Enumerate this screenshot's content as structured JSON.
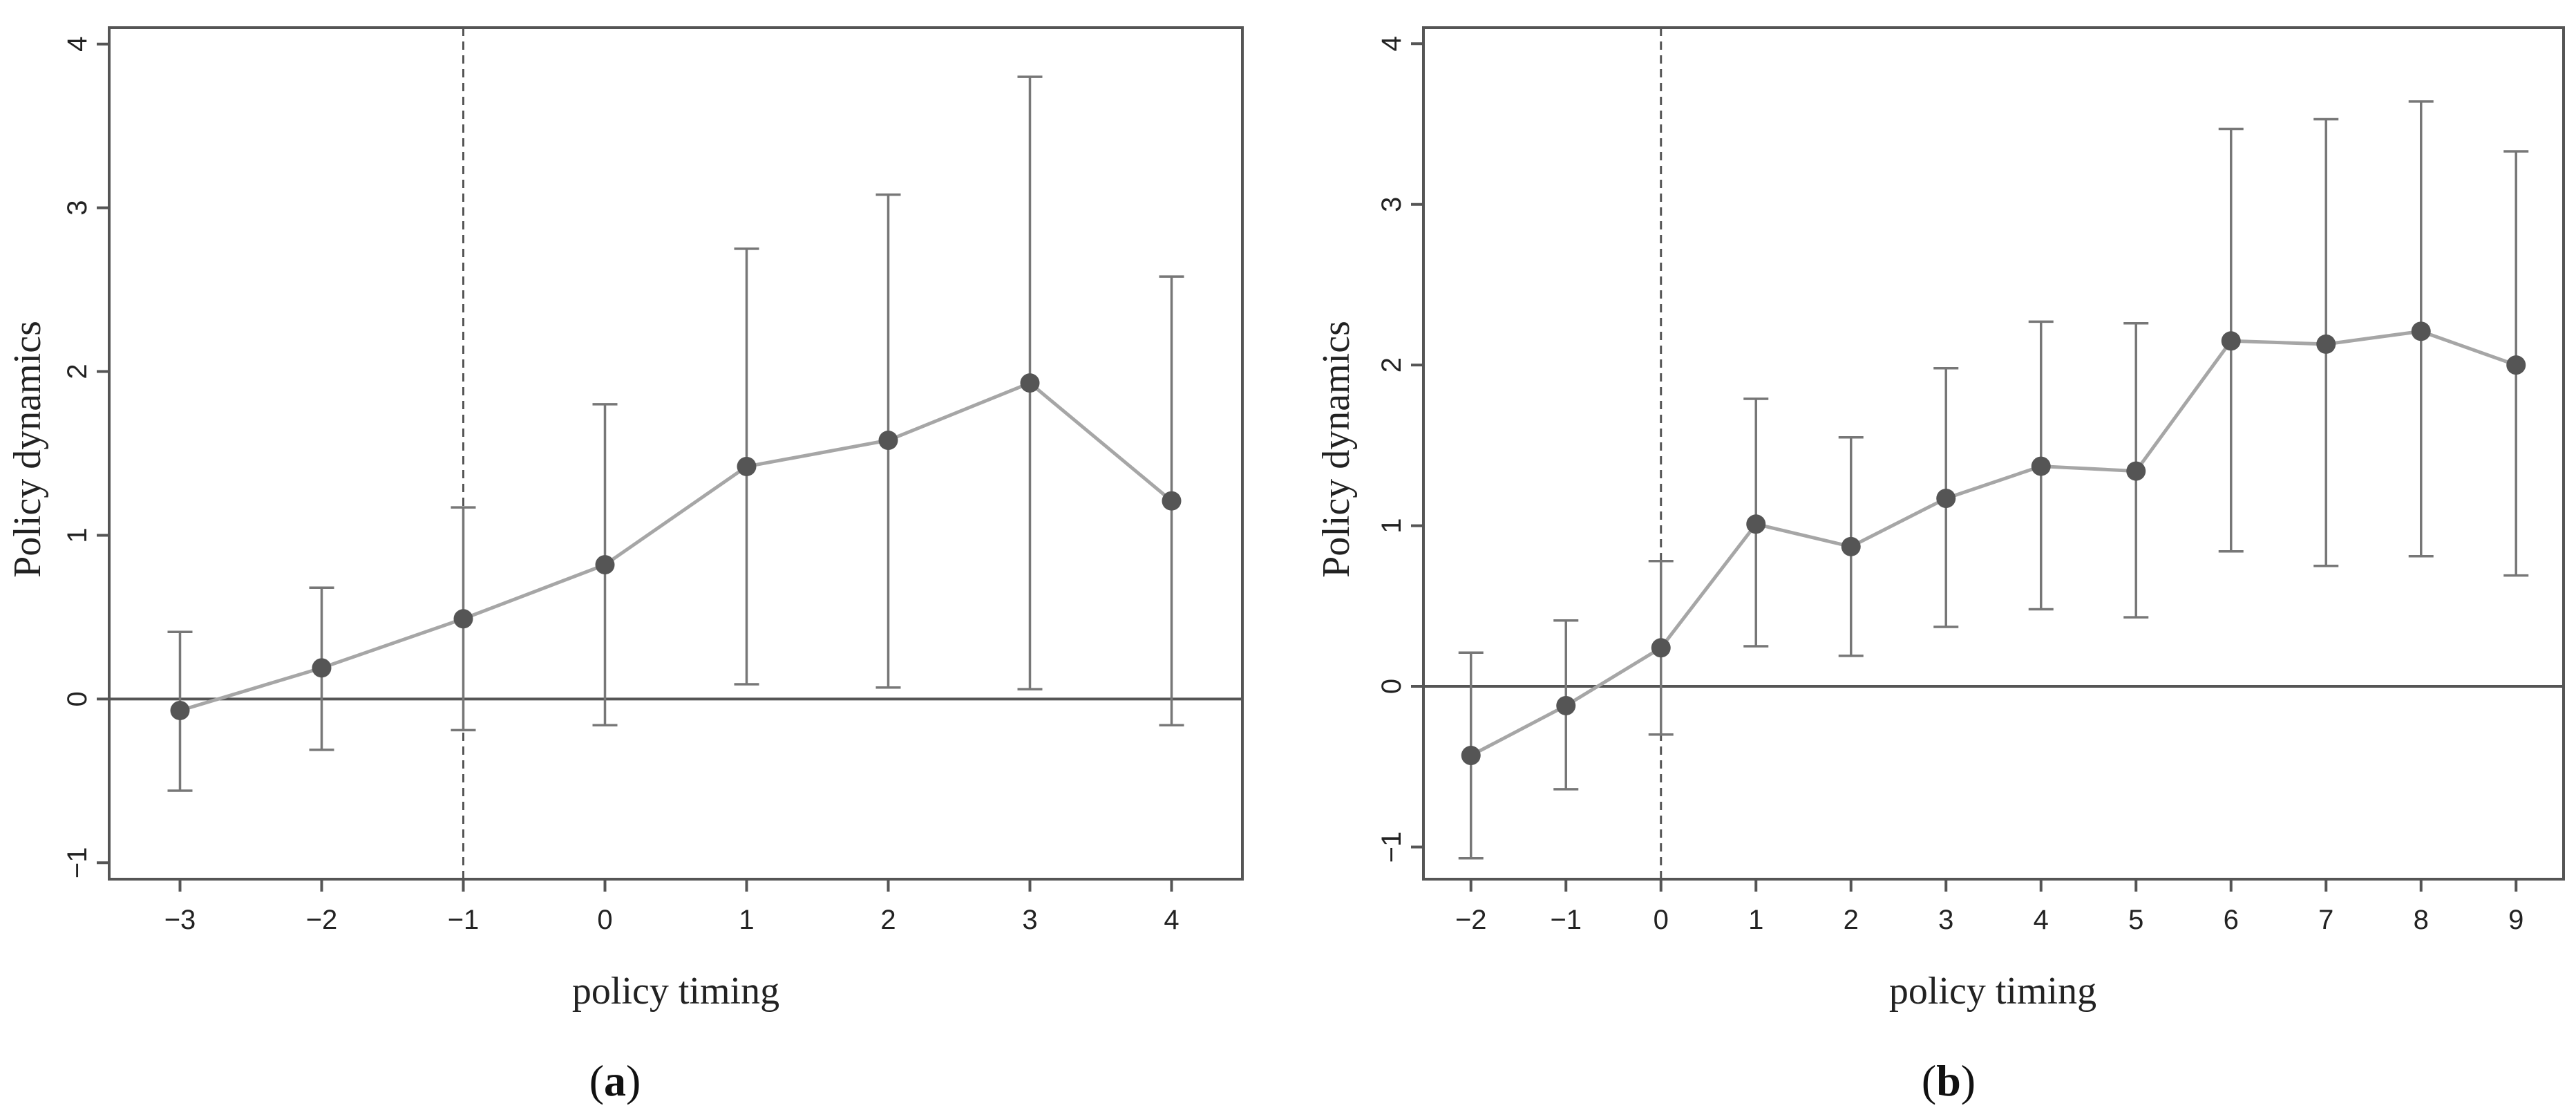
{
  "chart_data": [
    {
      "type": "scatter",
      "panel_label": "a",
      "xlabel": "policy timing",
      "ylabel": "Policy dynamics",
      "x": [
        -3,
        -2,
        -1,
        0,
        1,
        2,
        3,
        4
      ],
      "x_ticks": [
        "-3",
        "-2",
        "-1",
        "0",
        "1",
        "2",
        "3",
        "4"
      ],
      "y": [
        -0.07,
        0.19,
        0.49,
        0.82,
        1.42,
        1.58,
        1.93,
        1.21
      ],
      "ci_lower": [
        -0.56,
        -0.31,
        -0.19,
        -0.16,
        0.09,
        0.07,
        0.06,
        -0.16
      ],
      "ci_upper": [
        0.41,
        0.68,
        1.17,
        1.8,
        2.75,
        3.08,
        3.8,
        2.58
      ],
      "y_ticks": [
        "-1",
        "0",
        "1",
        "2",
        "3",
        "4"
      ],
      "xlim": [
        -3.5,
        4.5
      ],
      "ylim": [
        -1.1,
        4.1
      ],
      "reference_hline": 0,
      "reference_vline": -1,
      "grid": false,
      "connected": true,
      "colors": {
        "line": "#a6a6a6",
        "marker": "#555555",
        "errorbar": "#777777",
        "axis": "#555555"
      }
    },
    {
      "type": "scatter",
      "panel_label": "b",
      "xlabel": "policy timing",
      "ylabel": "Policy dynamics",
      "x": [
        -2,
        -1,
        0,
        1,
        2,
        3,
        4,
        5,
        6,
        7,
        8,
        9
      ],
      "x_ticks": [
        "-2",
        "-1",
        "0",
        "1",
        "2",
        "3",
        "4",
        "5",
        "6",
        "7",
        "8",
        "9"
      ],
      "y": [
        -0.43,
        -0.12,
        0.24,
        1.01,
        0.87,
        1.17,
        1.37,
        1.34,
        2.15,
        2.13,
        2.21,
        2.0
      ],
      "ci_lower": [
        -1.07,
        -0.64,
        -0.3,
        0.25,
        0.19,
        0.37,
        0.48,
        0.43,
        0.84,
        0.75,
        0.81,
        0.69
      ],
      "ci_upper": [
        0.21,
        0.41,
        0.78,
        1.79,
        1.55,
        1.98,
        2.27,
        2.26,
        3.47,
        3.53,
        3.64,
        3.33
      ],
      "y_ticks": [
        "-1",
        "0",
        "1",
        "2",
        "3",
        "4"
      ],
      "xlim": [
        -2.5,
        9.5
      ],
      "ylim": [
        -1.2,
        4.1
      ],
      "reference_hline": 0,
      "reference_vline": 0,
      "grid": false,
      "connected": true,
      "colors": {
        "line": "#a6a6a6",
        "marker": "#555555",
        "errorbar": "#777777",
        "axis": "#555555"
      }
    }
  ]
}
